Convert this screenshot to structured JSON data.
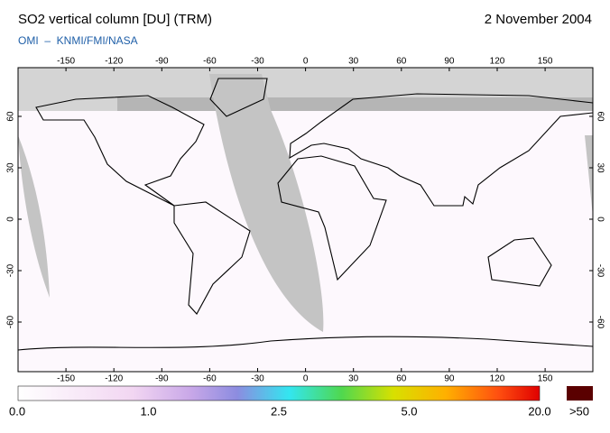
{
  "header": {
    "title": "SO2 vertical column [DU] (TRM)",
    "date": "2 November 2004",
    "subtitle": "OMI  –  KNMI/FMI/NASA"
  },
  "map": {
    "lon_ticks": [
      -150,
      -120,
      -90,
      -60,
      -30,
      0,
      30,
      60,
      90,
      120,
      150
    ],
    "lat_ticks": [
      60,
      30,
      0,
      -30,
      -60
    ]
  },
  "colorbar": {
    "labels": [
      "0.0",
      "1.0",
      "2.5",
      "5.0",
      "20.0",
      ">50"
    ]
  }
}
